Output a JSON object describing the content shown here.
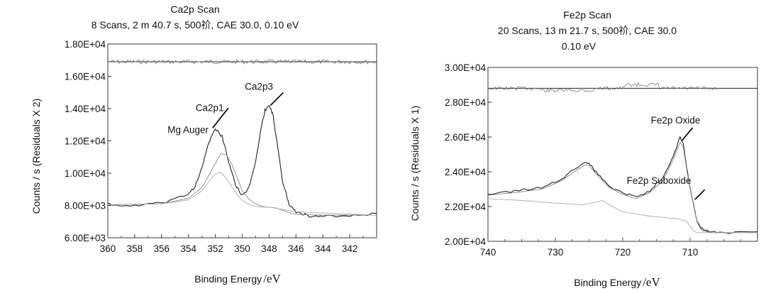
{
  "chart_data": [
    {
      "type": "line",
      "title": "Ca2p Scan",
      "subtitle": "8 Scans,  2 m 40.7 s,  500祄,  CAE 30.0,  0.10 eV",
      "xlabel": "Binding Energy",
      "xunit": "eV",
      "xlabel_sep": "/",
      "ylabel": "Counts / s  (Residuals X 2)",
      "xlim": [
        360,
        340
      ],
      "ylim": [
        6000,
        18000
      ],
      "xticks": [
        "360",
        "358",
        "356",
        "354",
        "352",
        "350",
        "348",
        "346",
        "344",
        "342"
      ],
      "yticks": [
        "6.00E+03",
        "8.00E+03",
        "1.00E+04",
        "1.20E+04",
        "1.40E+04",
        "1.60E+04",
        "1.80E+04"
      ],
      "residual_baseline": 16900,
      "series": [
        {
          "x": [
            360,
            358,
            356,
            354,
            353.5,
            353,
            352.5,
            352,
            351.5,
            351,
            350.5,
            350,
            349.5,
            349,
            348.6,
            348.3,
            348,
            347.7,
            347.4,
            347,
            346.5,
            346,
            345,
            344,
            342,
            340
          ],
          "values": [
            8100,
            7950,
            8150,
            8700,
            9200,
            10300,
            11900,
            12700,
            12300,
            10700,
            9300,
            8600,
            9100,
            10700,
            12800,
            13900,
            14200,
            13600,
            11800,
            9500,
            8100,
            7600,
            7350,
            7300,
            7350,
            7500
          ]
        },
        {
          "x": [
            360,
            356,
            354,
            353,
            352.5,
            352,
            351.6,
            351.2,
            350.8,
            350.4,
            350,
            349.5,
            349,
            348.5,
            348.2,
            348,
            347.8,
            347.5,
            347,
            346.5,
            346,
            344,
            340
          ],
          "values": [
            8050,
            8100,
            8450,
            9100,
            9850,
            10600,
            11200,
            11150,
            10600,
            9800,
            8900,
            8400,
            8100,
            7950,
            7900,
            7900,
            7880,
            7850,
            7700,
            7550,
            7450,
            7400,
            7400
          ]
        },
        {
          "x": [
            360,
            356,
            354,
            353,
            352.5,
            352,
            351.6,
            351.2,
            350.8,
            350.4,
            350,
            349.5,
            349,
            348.5,
            348,
            346,
            340
          ],
          "values": [
            8050,
            8100,
            8350,
            8900,
            9450,
            9950,
            10050,
            9700,
            9200,
            8700,
            8300,
            8050,
            7950,
            7900,
            7900,
            7600,
            7400
          ]
        }
      ],
      "annotations": [
        {
          "text": "Ca2p3",
          "x": 347.9,
          "y": 14200
        },
        {
          "text": "Ca2p1",
          "x": 352.2,
          "y": 12800
        },
        {
          "text": "Mg Auger",
          "x": 352.6,
          "y": 12400
        }
      ]
    },
    {
      "type": "line",
      "title": "Fe2p Scan",
      "subtitle": "20 Scans,  13 m 21.7 s,  500祄,  CAE 30.0",
      "subtitle2": "0.10 eV",
      "xlabel": "Binding Energy",
      "xunit": "eV",
      "xlabel_sep": "/",
      "ylabel": "Counts / s  (Residuals X 1)",
      "xlim": [
        740,
        700
      ],
      "ylim": [
        20000,
        30000
      ],
      "xticks": [
        "740",
        "730",
        "720",
        "710"
      ],
      "yticks": [
        "2.00E+04",
        "2.20E+04",
        "2.40E+04",
        "2.60E+04",
        "2.80E+04",
        "3.00E+04"
      ],
      "residual_baseline": 28800,
      "series": [
        {
          "x": [
            740,
            736,
            732,
            729,
            727,
            725.5,
            725,
            724,
            722,
            720,
            718,
            716,
            714,
            712.5,
            711.5,
            711,
            710.5,
            710,
            709.5,
            709,
            708.5,
            708,
            707,
            705,
            700
          ],
          "values": [
            22700,
            22900,
            23100,
            23600,
            24200,
            24550,
            24500,
            24000,
            23150,
            22800,
            22550,
            22900,
            23700,
            24900,
            26000,
            25600,
            24200,
            23100,
            22150,
            21200,
            20800,
            20650,
            20550,
            20500,
            20550
          ]
        },
        {
          "x": [
            740,
            736,
            732,
            729,
            727,
            725.5,
            725,
            724,
            722,
            720,
            718,
            716,
            714,
            712.5,
            711.5,
            711,
            710.5,
            710,
            709.5,
            709,
            708.5,
            708,
            707,
            705,
            700
          ],
          "values": [
            22650,
            22800,
            23000,
            23500,
            24050,
            24400,
            24350,
            23900,
            23100,
            22700,
            22450,
            22800,
            23500,
            24700,
            25700,
            25400,
            24100,
            23000,
            22100,
            21150,
            20750,
            20600,
            20500,
            20500,
            20500
          ]
        },
        {
          "x": [
            740,
            735,
            730,
            726,
            724,
            723,
            722,
            720,
            716,
            712,
            710.5,
            710,
            709.5,
            709,
            708.5,
            708,
            706,
            700
          ],
          "values": [
            22450,
            22350,
            22200,
            22100,
            22250,
            22350,
            22100,
            21700,
            21450,
            21300,
            21150,
            20850,
            20600,
            20500,
            20500,
            20500,
            20500,
            20500
          ]
        }
      ],
      "annotations": [
        {
          "text": "Fe2p Oxide",
          "x": 711.2,
          "y": 25800
        },
        {
          "text": "Fe2p Suboxide",
          "x": 709.3,
          "y": 22400
        }
      ]
    }
  ]
}
